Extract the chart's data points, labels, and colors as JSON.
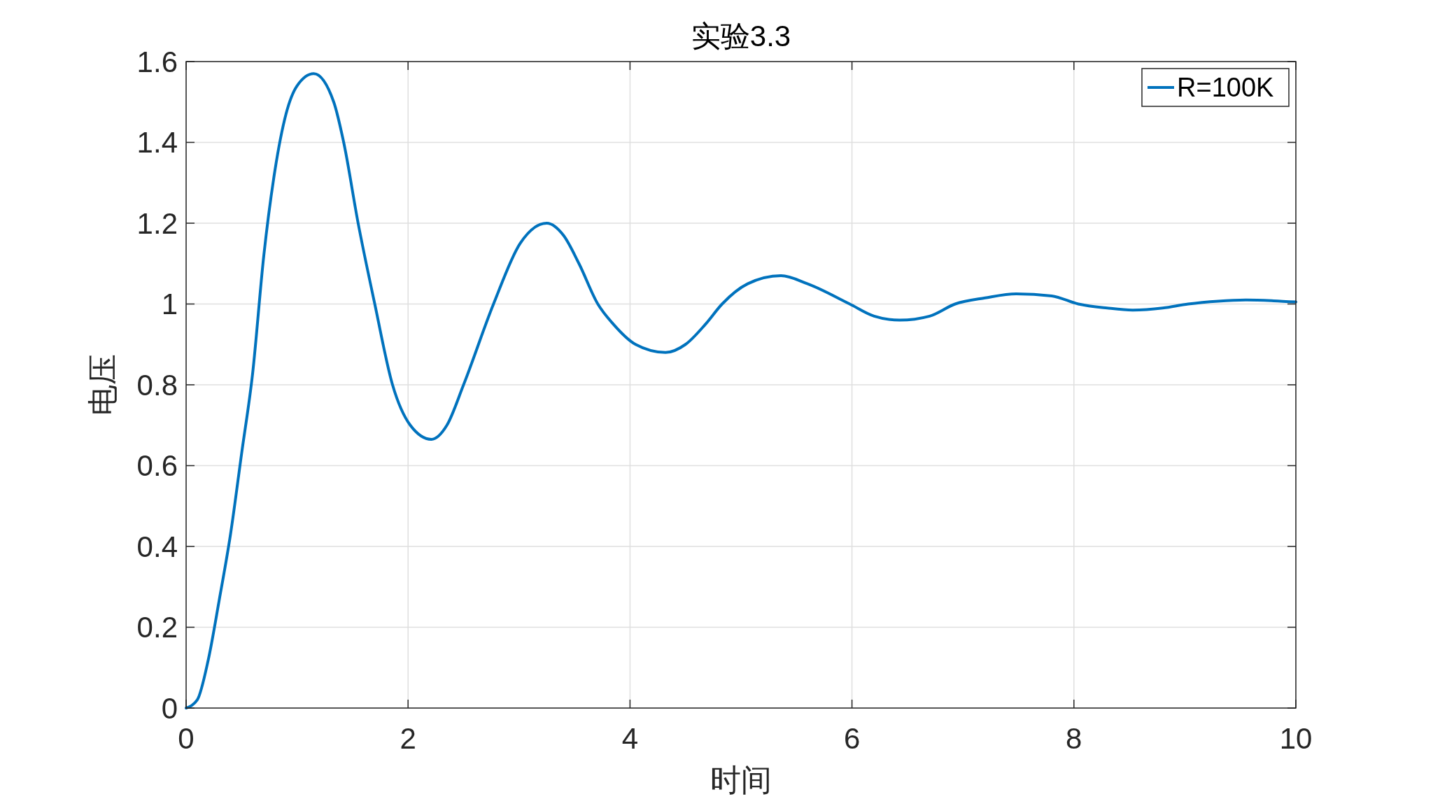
{
  "chart_data": {
    "type": "line",
    "title": "实验3.3",
    "xlabel": "时间",
    "ylabel": "电压",
    "x": [
      0,
      0.1,
      0.2,
      0.3,
      0.4,
      0.5,
      0.6,
      0.7,
      0.8,
      0.9,
      1.0,
      1.15,
      1.33,
      1.42,
      1.55,
      1.7,
      1.86,
      2.02,
      2.21,
      2.35,
      2.5,
      2.77,
      3.01,
      3.25,
      3.4,
      3.54,
      3.71,
      3.85,
      4.05,
      4.32,
      4.5,
      4.68,
      4.83,
      5.06,
      5.36,
      5.6,
      5.98,
      6.2,
      6.43,
      6.7,
      6.93,
      7.2,
      7.48,
      7.8,
      8.04,
      8.3,
      8.53,
      8.8,
      9.03,
      9.3,
      9.56,
      9.8,
      10
    ],
    "series": [
      {
        "name": "R=100K",
        "color": "#0072bd",
        "values": [
          0,
          0.02,
          0.12,
          0.27,
          0.43,
          0.63,
          0.83,
          1.12,
          1.33,
          1.47,
          1.54,
          1.57,
          1.5,
          1.4,
          1.2,
          1.0,
          0.8,
          0.7,
          0.665,
          0.7,
          0.8,
          1.0,
          1.15,
          1.2,
          1.17,
          1.1,
          1.0,
          0.95,
          0.9,
          0.88,
          0.9,
          0.95,
          1.0,
          1.05,
          1.07,
          1.05,
          1.0,
          0.97,
          0.96,
          0.97,
          1.0,
          1.015,
          1.025,
          1.02,
          1.0,
          0.99,
          0.985,
          0.99,
          1.0,
          1.007,
          1.01,
          1.008,
          1.005
        ]
      }
    ],
    "xlim": [
      0,
      10
    ],
    "ylim": [
      0,
      1.6
    ],
    "xticks": [
      0,
      2,
      4,
      6,
      8,
      10
    ],
    "yticks": [
      0,
      0.2,
      0.4,
      0.6,
      0.8,
      1,
      1.2,
      1.4,
      1.6
    ],
    "grid": true,
    "legend": "top right",
    "marker": "none",
    "line_style": "solid"
  }
}
